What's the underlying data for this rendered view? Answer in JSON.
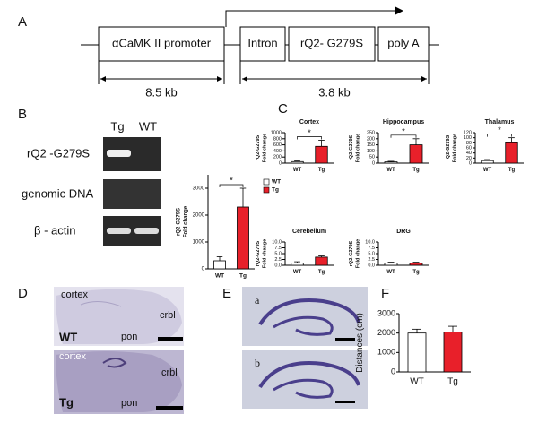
{
  "panel_labels": [
    "A",
    "B",
    "C",
    "D",
    "E",
    "F"
  ],
  "construct": {
    "segments": [
      "αCaMK II promoter",
      "Intron",
      "rQ2- G279S",
      "poly A"
    ],
    "lengths": [
      "8.5 kb",
      "3.8 kb"
    ]
  },
  "gel": {
    "lanes": [
      "Tg",
      "WT"
    ],
    "rows": [
      "rQ2 -G279S",
      "genomic DNA",
      "β - actin"
    ]
  },
  "histology": {
    "d_top": {
      "labels": [
        "cortex",
        "crbl",
        "pon"
      ],
      "genotype": "WT"
    },
    "d_bottom": {
      "labels": [
        "cortex",
        "crbl",
        "pon"
      ],
      "genotype": "Tg"
    },
    "e_labels": [
      "a",
      "b"
    ]
  },
  "chart_data": [
    {
      "type": "bar",
      "categories": [
        "WT",
        "Tg"
      ],
      "values": [
        300,
        2300
      ],
      "errors": [
        150,
        700
      ],
      "colors": [
        "#ffffff",
        "#e8202a"
      ],
      "ylim": [
        0,
        3500
      ],
      "yticks": [
        0,
        1000,
        2000,
        3000
      ],
      "ylabel": [
        "rQ2-G279S",
        "Fold change"
      ],
      "significance": "*",
      "legend": true
    },
    {
      "type": "bar",
      "title": "Cortex",
      "categories": [
        "WT",
        "Tg"
      ],
      "values": [
        50,
        550
      ],
      "errors": [
        20,
        200
      ],
      "colors": [
        "#ffffff",
        "#e8202a"
      ],
      "ylim": [
        0,
        1000
      ],
      "yticks": [
        0,
        200,
        400,
        600,
        800,
        1000
      ],
      "ylabel": [
        "rQ2-G279S",
        "Fold change"
      ],
      "significance": "*"
    },
    {
      "type": "bar",
      "title": "Hippocampus",
      "categories": [
        "WT",
        "Tg"
      ],
      "values": [
        10,
        150
      ],
      "errors": [
        5,
        50
      ],
      "colors": [
        "#ffffff",
        "#e8202a"
      ],
      "ylim": [
        0,
        250
      ],
      "yticks": [
        0,
        50,
        100,
        150,
        200,
        250
      ],
      "ylabel": [
        "rQ2-G279S",
        "Fold change"
      ],
      "significance": "*"
    },
    {
      "type": "bar",
      "title": "Thalamus",
      "categories": [
        "WT",
        "Tg"
      ],
      "values": [
        10,
        80
      ],
      "errors": [
        4,
        20
      ],
      "colors": [
        "#ffffff",
        "#e8202a"
      ],
      "ylim": [
        0,
        120
      ],
      "yticks": [
        0,
        20,
        40,
        60,
        80,
        100,
        120
      ],
      "ylabel": [
        "rQ2-G279S",
        "Fold change"
      ],
      "significance": "*"
    },
    {
      "type": "bar",
      "title": "Cerebellum",
      "categories": [
        "WT",
        "Tg"
      ],
      "values": [
        1,
        3.5
      ],
      "errors": [
        0.5,
        0.5
      ],
      "colors": [
        "#ffffff",
        "#e8202a"
      ],
      "ylim": [
        0,
        10
      ],
      "yticks": [
        {
          "value": 0,
          "label": "0.0"
        },
        2.5,
        {
          "value": 5,
          "label": "5.0"
        },
        7.5,
        {
          "value": 10,
          "label": "10.0"
        }
      ],
      "ylabel": [
        "rQ2-G279S",
        "Fold change"
      ]
    },
    {
      "type": "bar",
      "title": "DRG",
      "categories": [
        "WT",
        "Tg"
      ],
      "values": [
        1,
        1
      ],
      "errors": [
        0.3,
        0.3
      ],
      "colors": [
        "#ffffff",
        "#e8202a"
      ],
      "ylim": [
        0,
        10
      ],
      "yticks": [
        {
          "value": 0,
          "label": "0.0"
        },
        2.5,
        {
          "value": 5,
          "label": "5.0"
        },
        7.5,
        {
          "value": 10,
          "label": "10.0"
        }
      ],
      "ylabel": [
        "rQ2-G279S",
        "Fold change"
      ]
    },
    {
      "type": "bar",
      "categories": [
        "WT",
        "Tg"
      ],
      "values": [
        2000,
        2050
      ],
      "errors": [
        200,
        300
      ],
      "colors": [
        "#ffffff",
        "#e8202a"
      ],
      "ylim": [
        0,
        3000
      ],
      "yticks": [
        0,
        1000,
        2000,
        3000
      ],
      "ylabel": [
        "Distances (cm)"
      ]
    }
  ]
}
